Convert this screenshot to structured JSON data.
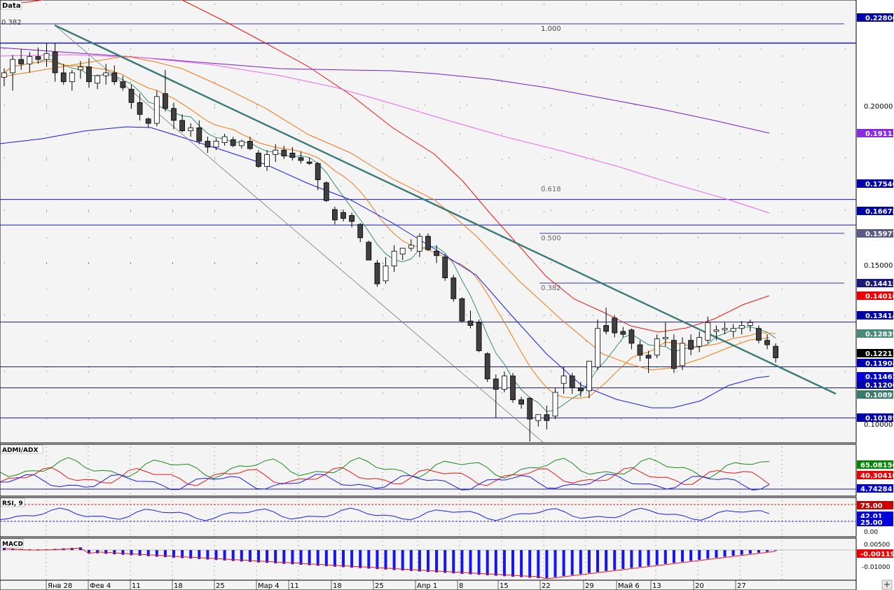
{
  "main_panel": {
    "title": "Data",
    "fib_label_top_left": "0.382",
    "fib_labels": [
      "1.000",
      "0.618",
      "0.500",
      "0.382"
    ],
    "axis_ticks": [
      "0.20000",
      "0.15000",
      "0.10000"
    ]
  },
  "price_tags": [
    {
      "text": "0.22800",
      "color": "#0000aa"
    },
    {
      "text": "0.19113",
      "color": "#8a2be2"
    },
    {
      "text": "0.17540",
      "color": "#0000aa"
    },
    {
      "text": "0.16678",
      "color": "#0000aa"
    },
    {
      "text": "0.15977",
      "color": "#5a5a8a"
    },
    {
      "text": "0.14415",
      "color": "#1a1a7a"
    },
    {
      "text": "0.14010",
      "color": "#ee0000"
    },
    {
      "text": "0.13414",
      "color": "#0000aa"
    },
    {
      "text": "0.12839",
      "color": "#4a8a7a"
    },
    {
      "text": "0.12211",
      "color": "#000000"
    },
    {
      "text": "0.11908",
      "color": "#0000aa"
    },
    {
      "text": "0.11462",
      "color": "#0000dd"
    },
    {
      "text": "0.11200",
      "color": "#0000aa"
    },
    {
      "text": "0.10891",
      "color": "#3a7a6a"
    },
    {
      "text": "0.10189",
      "color": "#0000aa"
    }
  ],
  "adx_panel": {
    "title": "ADMI/ADX",
    "tags": [
      {
        "text": "65.08156",
        "color": "#008800"
      },
      {
        "text": "40.30410",
        "color": "#ee0000"
      },
      {
        "text": "4.74284",
        "color": "#0000dd"
      }
    ]
  },
  "rsi_panel": {
    "title": "RSI, 9",
    "tags": [
      {
        "text": "75.00",
        "color": "#cc0000"
      },
      {
        "text": "42.01",
        "color": "#0000dd"
      },
      {
        "text": "25.00",
        "color": "#0000dd"
      }
    ],
    "axis_ticks": [
      "0.00"
    ]
  },
  "macd_panel": {
    "title": "MACD",
    "tags": [
      {
        "text": "-0.00119",
        "color": "#ee0000"
      }
    ],
    "axis_ticks": [
      "0.00500",
      "-0.01000"
    ]
  },
  "x_axis_labels": [
    "Янв 28",
    "Фев 4",
    "11",
    "18",
    "25",
    "Мар 4",
    "11",
    "18",
    "25",
    "Апр 1",
    "8",
    "15",
    "22",
    "29",
    "Май 6",
    "13",
    "20",
    "27"
  ],
  "chart_data": {
    "type": "candlestick",
    "title": "Data",
    "x": [
      "Янв 28",
      "Фев 4",
      "11",
      "18",
      "25",
      "Мар 4",
      "11",
      "18",
      "25",
      "Апр 1",
      "8",
      "15",
      "22",
      "29",
      "Май 6",
      "13",
      "20",
      "27"
    ],
    "ylim": [
      0.0935,
      0.2425
    ],
    "ohlc": [
      [
        0.2165,
        0.2195,
        0.2135,
        0.218
      ],
      [
        0.218,
        0.224,
        0.212,
        0.2225
      ],
      [
        0.2225,
        0.226,
        0.219,
        0.221
      ],
      [
        0.221,
        0.225,
        0.218,
        0.2235
      ],
      [
        0.2235,
        0.2265,
        0.221,
        0.2225
      ],
      [
        0.2225,
        0.228,
        0.22,
        0.2245
      ],
      [
        0.225,
        0.228,
        0.215,
        0.218
      ],
      [
        0.218,
        0.221,
        0.214,
        0.215
      ],
      [
        0.215,
        0.219,
        0.212,
        0.218
      ],
      [
        0.219,
        0.222,
        0.216,
        0.22
      ],
      [
        0.22,
        0.223,
        0.213,
        0.215
      ],
      [
        0.2145,
        0.2175,
        0.2125,
        0.217
      ],
      [
        0.217,
        0.221,
        0.214,
        0.218
      ],
      [
        0.218,
        0.2205,
        0.214,
        0.215
      ],
      [
        0.215,
        0.217,
        0.212,
        0.213
      ],
      [
        0.2125,
        0.214,
        0.206,
        0.208
      ],
      [
        0.208,
        0.211,
        0.202,
        0.204
      ],
      [
        0.2025,
        0.203,
        0.1995,
        0.201
      ],
      [
        0.201,
        0.212,
        0.2,
        0.21
      ],
      [
        0.211,
        0.219,
        0.205,
        0.206
      ],
      [
        0.206,
        0.208,
        0.199,
        0.202
      ],
      [
        0.202,
        0.204,
        0.198,
        0.1985
      ],
      [
        0.1985,
        0.201,
        0.1965,
        0.1995
      ],
      [
        0.1995,
        0.202,
        0.194,
        0.195
      ],
      [
        0.195,
        0.1965,
        0.191,
        0.193
      ],
      [
        0.193,
        0.196,
        0.192,
        0.195
      ],
      [
        0.1945,
        0.1975,
        0.1935,
        0.1965
      ],
      [
        0.1955,
        0.1965,
        0.193,
        0.1935
      ],
      [
        0.1935,
        0.1955,
        0.1925,
        0.195
      ],
      [
        0.195,
        0.1965,
        0.192,
        0.1925
      ],
      [
        0.191,
        0.192,
        0.186,
        0.1865
      ],
      [
        0.1865,
        0.192,
        0.185,
        0.1905
      ],
      [
        0.1905,
        0.194,
        0.188,
        0.192
      ],
      [
        0.192,
        0.1935,
        0.189,
        0.19
      ],
      [
        0.191,
        0.193,
        0.1885,
        0.1895
      ],
      [
        0.1895,
        0.1915,
        0.1875,
        0.1885
      ],
      [
        0.188,
        0.1895,
        0.187,
        0.1875
      ],
      [
        0.1875,
        0.188,
        0.1785,
        0.182
      ],
      [
        0.181,
        0.1815,
        0.1745,
        0.175
      ],
      [
        0.172,
        0.173,
        0.167,
        0.1685
      ],
      [
        0.171,
        0.172,
        0.168,
        0.169
      ],
      [
        0.17,
        0.171,
        0.166,
        0.168
      ],
      [
        0.167,
        0.1675,
        0.161,
        0.1625
      ],
      [
        0.161,
        0.1615,
        0.155,
        0.155
      ],
      [
        0.154,
        0.155,
        0.146,
        0.147
      ],
      [
        0.148,
        0.156,
        0.147,
        0.153
      ],
      [
        0.153,
        0.16,
        0.151,
        0.158
      ],
      [
        0.157,
        0.159,
        0.155,
        0.159
      ],
      [
        0.159,
        0.162,
        0.158,
        0.16
      ],
      [
        0.158,
        0.164,
        0.156,
        0.163
      ],
      [
        0.163,
        0.164,
        0.158,
        0.1585
      ],
      [
        0.158,
        0.16,
        0.154,
        0.1565
      ],
      [
        0.156,
        0.157,
        0.148,
        0.149
      ],
      [
        0.149,
        0.15,
        0.141,
        0.142
      ],
      [
        0.142,
        0.1425,
        0.134,
        0.1345
      ],
      [
        0.1345,
        0.138,
        0.132,
        0.133
      ],
      [
        0.134,
        0.135,
        0.124,
        0.1245
      ],
      [
        0.1235,
        0.124,
        0.114,
        0.115
      ],
      [
        0.115,
        0.1165,
        0.102,
        0.1115
      ],
      [
        0.1115,
        0.1175,
        0.1105,
        0.116
      ],
      [
        0.116,
        0.117,
        0.107,
        0.108
      ],
      [
        0.108,
        0.109,
        0.105,
        0.1065
      ],
      [
        0.1085,
        0.109,
        0.094,
        0.1015
      ],
      [
        0.101,
        0.1025,
        0.099,
        0.103
      ],
      [
        0.103,
        0.106,
        0.098,
        0.101
      ],
      [
        0.1025,
        0.112,
        0.1015,
        0.1105
      ],
      [
        0.1135,
        0.119,
        0.11,
        0.116
      ],
      [
        0.116,
        0.117,
        0.11,
        0.112
      ],
      [
        0.112,
        0.114,
        0.109,
        0.111
      ],
      [
        0.111,
        0.121,
        0.1085,
        0.121
      ],
      [
        0.119,
        0.135,
        0.118,
        0.132
      ],
      [
        0.133,
        0.139,
        0.13,
        0.131
      ],
      [
        0.1355,
        0.1365,
        0.129,
        0.1305
      ],
      [
        0.131,
        0.1325,
        0.129,
        0.13
      ],
      [
        0.1315,
        0.132,
        0.125,
        0.127
      ],
      [
        0.1265,
        0.128,
        0.121,
        0.123
      ],
      [
        0.123,
        0.1245,
        0.117,
        0.122
      ],
      [
        0.123,
        0.13,
        0.122,
        0.1285
      ],
      [
        0.1285,
        0.134,
        0.126,
        0.129
      ],
      [
        0.128,
        0.13,
        0.117,
        0.1185
      ],
      [
        0.1195,
        0.129,
        0.118,
        0.127
      ],
      [
        0.128,
        0.13,
        0.123,
        0.125
      ],
      [
        0.126,
        0.131,
        0.124,
        0.129
      ],
      [
        0.128,
        0.136,
        0.127,
        0.134
      ],
      [
        0.131,
        0.133,
        0.128,
        0.1315
      ],
      [
        0.1315,
        0.134,
        0.13,
        0.132
      ],
      [
        0.131,
        0.1335,
        0.129,
        0.132
      ],
      [
        0.132,
        0.1345,
        0.13,
        0.133
      ],
      [
        0.133,
        0.135,
        0.131,
        0.134
      ],
      [
        0.132,
        0.133,
        0.127,
        0.128
      ],
      [
        0.128,
        0.13,
        0.125,
        0.1265
      ],
      [
        0.126,
        0.127,
        0.1205,
        0.1221
      ]
    ]
  }
}
